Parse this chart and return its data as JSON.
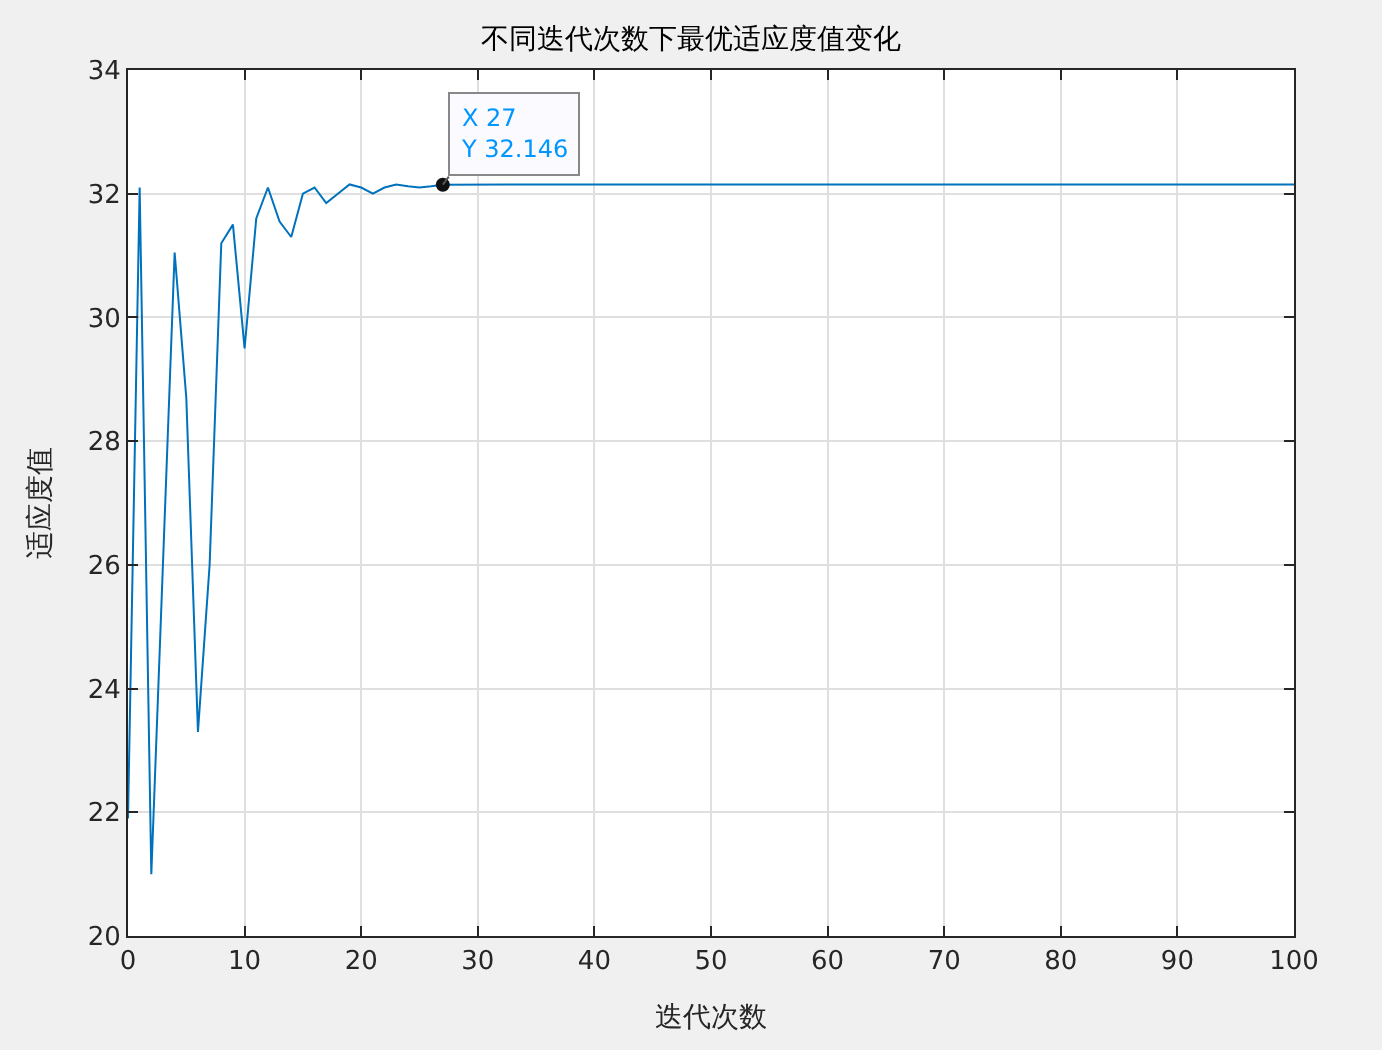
{
  "chart_data": {
    "type": "line",
    "title": "不同迭代次数下最优适应度值变化",
    "xlabel": "迭代次数",
    "ylabel": "适应度值",
    "x": [
      0,
      1,
      2,
      4,
      5,
      6,
      7,
      8,
      9,
      10,
      11,
      12,
      13,
      14,
      15,
      16,
      17,
      18,
      19,
      20,
      21,
      22,
      23,
      24,
      25,
      26,
      27,
      40,
      60,
      80,
      100
    ],
    "series": [
      {
        "color": "#0072bd",
        "values": [
          21.9,
          32.1,
          21.0,
          31.05,
          28.7,
          23.3,
          26.0,
          31.2,
          31.5,
          29.5,
          31.6,
          32.1,
          31.55,
          31.3,
          32.0,
          32.1,
          31.85,
          32.0,
          32.15,
          32.1,
          32.0,
          32.1,
          32.15,
          32.12,
          32.1,
          32.12,
          32.146,
          32.15,
          32.15,
          32.15,
          32.15
        ]
      }
    ],
    "xlim": [
      0,
      100
    ],
    "xticks": [
      0,
      10,
      20,
      30,
      40,
      50,
      60,
      70,
      80,
      90,
      100
    ],
    "ylim": [
      20,
      34
    ],
    "yticks": [
      20,
      22,
      24,
      26,
      28,
      30,
      32,
      34
    ],
    "grid": true,
    "annotations": [
      {
        "text": "X 27\nY 32.146",
        "x": 27,
        "y": 32.146
      }
    ]
  }
}
